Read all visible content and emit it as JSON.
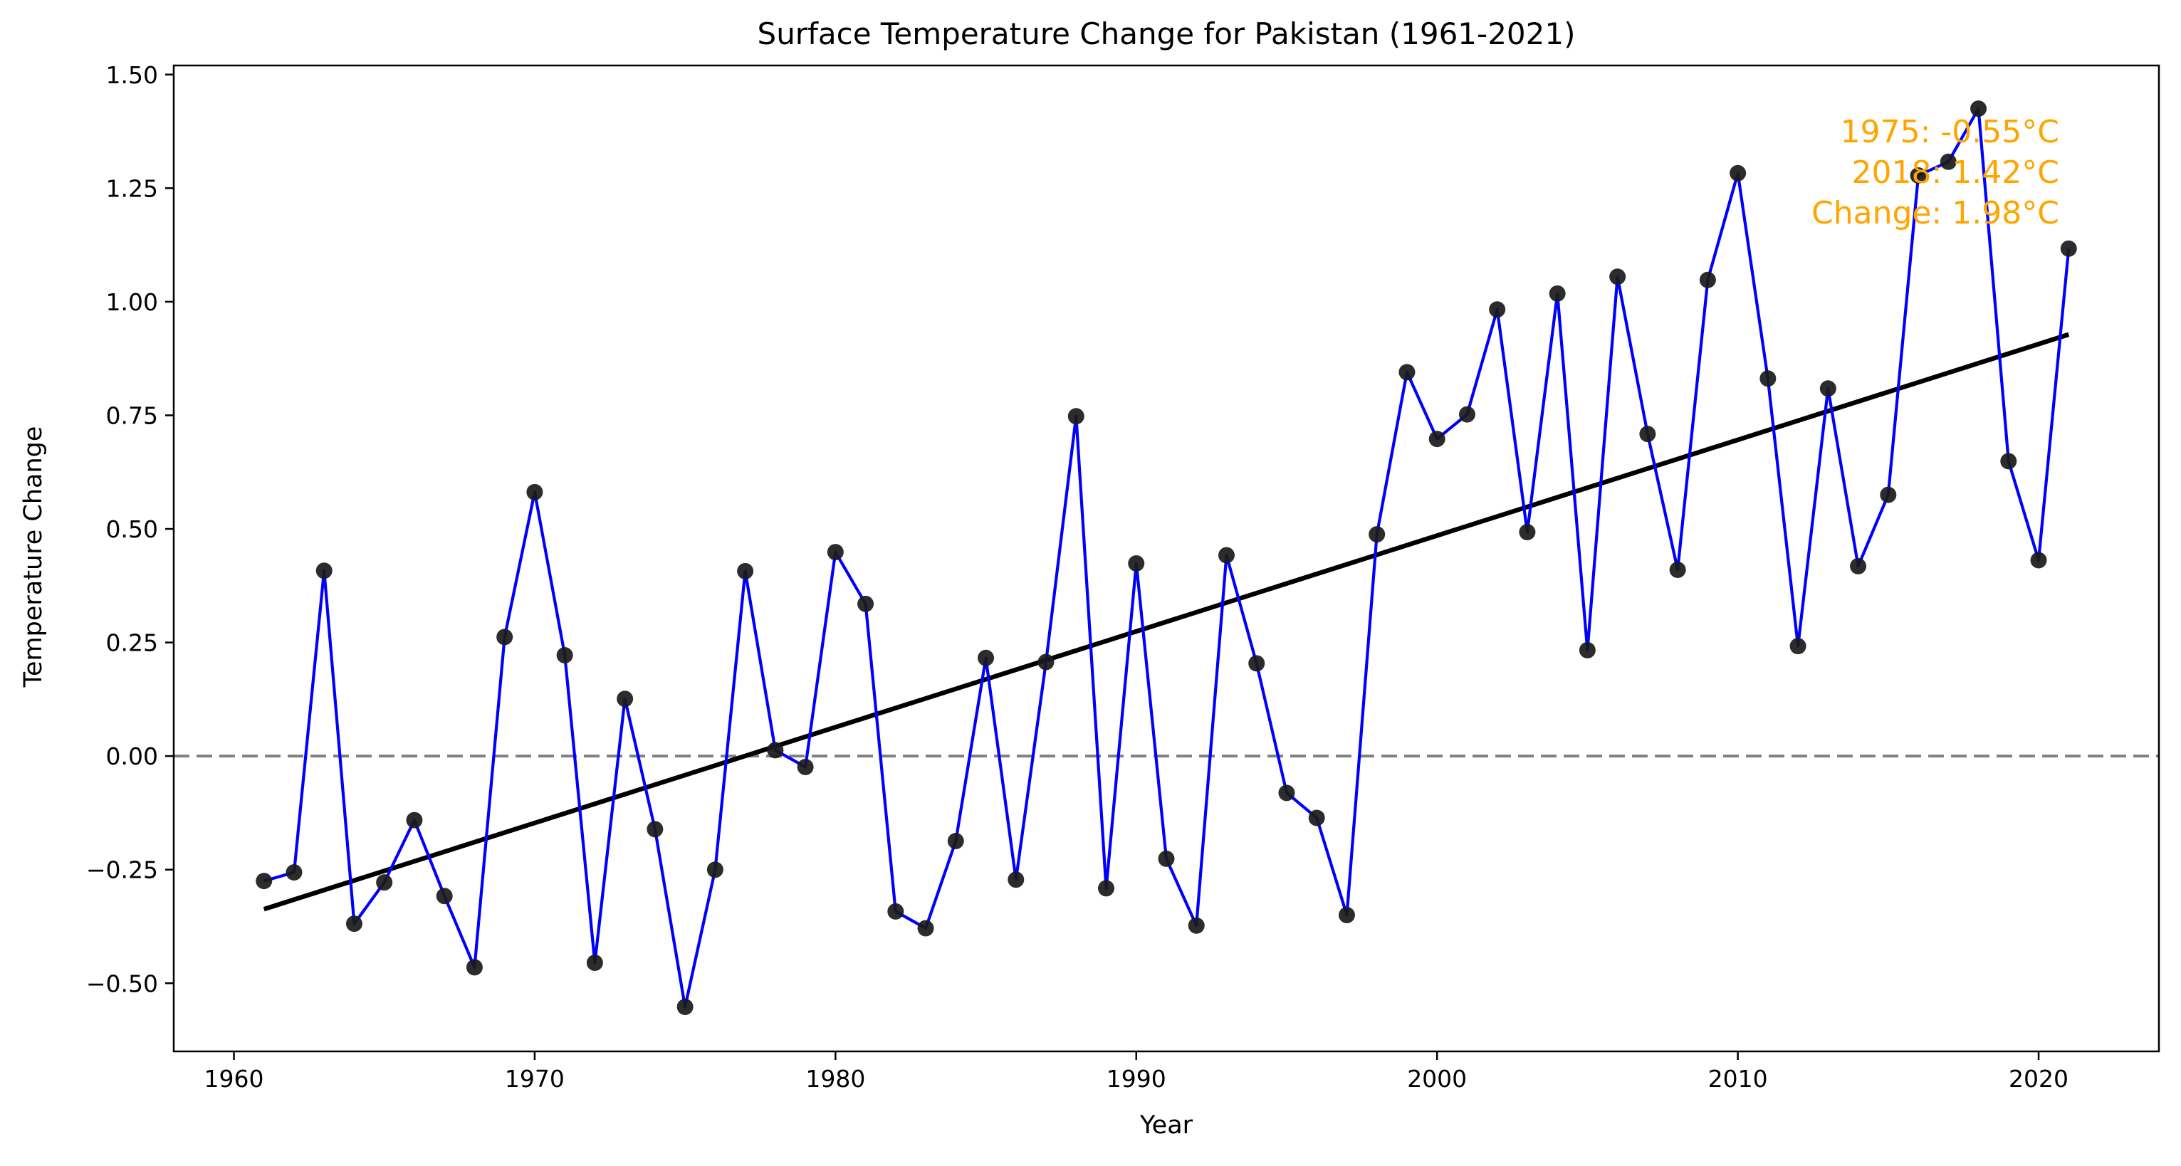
{
  "chart_data": {
    "type": "line",
    "title": "Surface Temperature Change for Pakistan (1961-2021)",
    "xlabel": "Year",
    "ylabel": "Temperature Change",
    "xlim": [
      1958,
      2024
    ],
    "ylim": [
      -0.65,
      1.52
    ],
    "x_ticks": [
      1960,
      1970,
      1980,
      1990,
      2000,
      2010,
      2020
    ],
    "y_ticks": [
      -0.5,
      -0.25,
      0.0,
      0.25,
      0.5,
      0.75,
      1.0,
      1.25,
      1.5
    ],
    "x_tick_labels": [
      "1960",
      "1970",
      "1980",
      "1990",
      "2000",
      "2010",
      "2020"
    ],
    "y_tick_labels": [
      "−0.50",
      "−0.25",
      "0.00",
      "0.25",
      "0.50",
      "0.75",
      "1.00",
      "1.25",
      "1.50"
    ],
    "grid": false,
    "reference_line": {
      "y": 0.0,
      "style": "dashed",
      "color": "#808080"
    },
    "series": [
      {
        "line_color": "#0000FF",
        "marker_color": "#1A1A1A",
        "x": [
          1961,
          1962,
          1963,
          1964,
          1965,
          1966,
          1967,
          1968,
          1969,
          1970,
          1971,
          1972,
          1973,
          1974,
          1975,
          1976,
          1977,
          1978,
          1979,
          1980,
          1981,
          1982,
          1983,
          1984,
          1985,
          1986,
          1987,
          1988,
          1989,
          1990,
          1991,
          1992,
          1993,
          1994,
          1995,
          1996,
          1997,
          1998,
          1999,
          2000,
          2001,
          2002,
          2003,
          2004,
          2005,
          2006,
          2007,
          2008,
          2009,
          2010,
          2011,
          2012,
          2013,
          2014,
          2015,
          2016,
          2017,
          2018,
          2019,
          2020,
          2021
        ],
        "y": [
          -0.275,
          -0.256,
          0.408,
          -0.369,
          -0.278,
          -0.141,
          -0.308,
          -0.465,
          0.262,
          0.581,
          0.222,
          -0.455,
          0.126,
          -0.161,
          -0.552,
          -0.25,
          0.407,
          0.013,
          -0.024,
          0.449,
          0.335,
          -0.342,
          -0.379,
          -0.187,
          0.216,
          -0.272,
          0.207,
          0.748,
          -0.291,
          0.424,
          -0.226,
          -0.373,
          0.442,
          0.204,
          -0.081,
          -0.136,
          -0.35,
          0.488,
          0.845,
          0.698,
          0.752,
          0.983,
          0.493,
          1.018,
          0.233,
          1.055,
          0.709,
          0.41,
          1.048,
          1.283,
          0.831,
          0.242,
          0.809,
          0.418,
          0.575,
          1.278,
          1.308,
          1.425,
          0.649,
          0.431,
          1.117
        ]
      }
    ],
    "trend_line": {
      "x": [
        1961,
        2021
      ],
      "y": [
        -0.337,
        0.928
      ],
      "color": "#000000"
    },
    "annotation": {
      "lines": [
        "1975: -0.55°C",
        "2018: 1.42°C",
        "Change: 1.98°C"
      ],
      "color": "#FFA500",
      "placement": "top-right"
    }
  }
}
